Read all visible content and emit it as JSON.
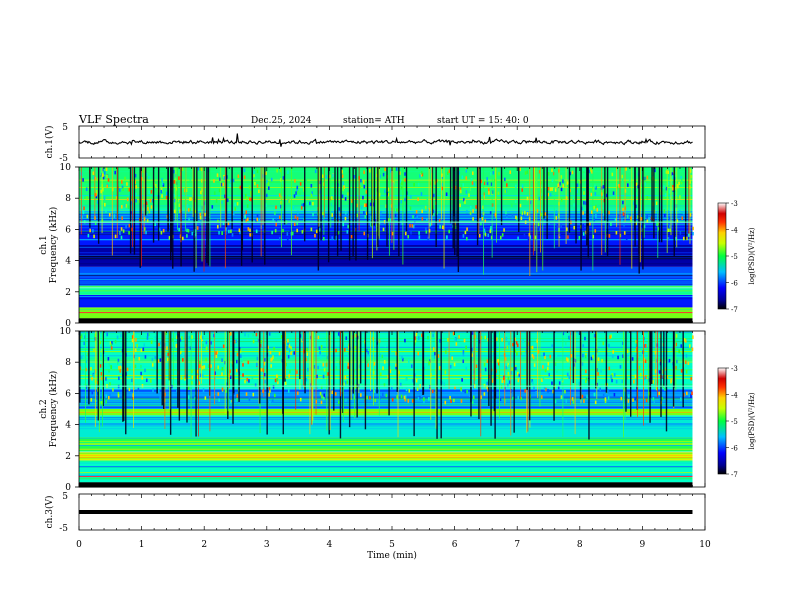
{
  "header": {
    "title": "VLF  Spectra",
    "date": "Dec.25, 2024",
    "station": "station= ATH",
    "start": "start  UT  =   15: 40: 0"
  },
  "colorbar": {
    "label": "log(PSD)(V²/Hz)",
    "ticks": [
      -3,
      -4,
      -5,
      -6,
      -7
    ]
  },
  "chart_data": [
    {
      "type": "line",
      "name": "ch.1 waveform",
      "ylabel": "ch.1(V)",
      "ylim": [
        -5,
        5
      ],
      "yticks": [
        "5",
        "-5"
      ],
      "xlim": [
        0,
        10
      ],
      "baseline": 0,
      "note_values": "dense noisy trace centered near 0 V with spikes up to about +2 V"
    },
    {
      "type": "heatmap",
      "name": "ch.1 spectrogram",
      "ylabel_top": "ch.1",
      "ylabel": "Frequency (kHz)",
      "ylim": [
        0,
        10
      ],
      "yticks": [
        "10",
        "8",
        "6",
        "4",
        "2",
        "0"
      ],
      "xlim": [
        0,
        9.8
      ],
      "clim": [
        -7,
        -3
      ],
      "bands": [
        {
          "f0": 0.0,
          "f1": 0.3,
          "level": -7.0
        },
        {
          "f0": 0.3,
          "f1": 1.0,
          "level": -4.6
        },
        {
          "f0": 1.0,
          "f1": 1.8,
          "level": -6.2
        },
        {
          "f0": 1.8,
          "f1": 2.4,
          "level": -5.1
        },
        {
          "f0": 2.4,
          "f1": 3.6,
          "level": -6.0
        },
        {
          "f0": 3.6,
          "f1": 5.0,
          "level": -6.6
        },
        {
          "f0": 5.0,
          "f1": 6.4,
          "level": -6.2
        },
        {
          "f0": 6.4,
          "f1": 7.2,
          "level": -5.6
        },
        {
          "f0": 7.2,
          "f1": 10.0,
          "level": -5.0
        }
      ]
    },
    {
      "type": "heatmap",
      "name": "ch.2 spectrogram",
      "ylabel_top": "ch.2",
      "ylabel": "Frequency (kHz)",
      "ylim": [
        0,
        10
      ],
      "yticks": [
        "10",
        "8",
        "6",
        "4",
        "2",
        "0"
      ],
      "xlim": [
        0,
        9.8
      ],
      "clim": [
        -7,
        -3
      ],
      "bands": [
        {
          "f0": 0.0,
          "f1": 0.3,
          "level": -7.0
        },
        {
          "f0": 0.3,
          "f1": 1.7,
          "level": -5.2
        },
        {
          "f0": 1.7,
          "f1": 2.2,
          "level": -4.3
        },
        {
          "f0": 2.2,
          "f1": 3.2,
          "level": -4.9
        },
        {
          "f0": 3.2,
          "f1": 4.6,
          "level": -5.3
        },
        {
          "f0": 4.6,
          "f1": 5.0,
          "level": -4.6
        },
        {
          "f0": 5.0,
          "f1": 6.3,
          "level": -5.7
        },
        {
          "f0": 6.3,
          "f1": 10.0,
          "level": -5.2
        }
      ]
    },
    {
      "type": "line",
      "name": "ch.3 waveform",
      "ylabel": "ch.3(V)",
      "ylim": [
        -5,
        5
      ],
      "yticks": [
        "5",
        "-5"
      ],
      "xlim": [
        0,
        10
      ],
      "baseline": 0,
      "note_values": "flat thick trace at about 0 V"
    }
  ],
  "xaxis": {
    "label": "Time  (min)",
    "ticks": [
      "0",
      "1",
      "2",
      "3",
      "4",
      "5",
      "6",
      "7",
      "8",
      "9",
      "10"
    ]
  }
}
